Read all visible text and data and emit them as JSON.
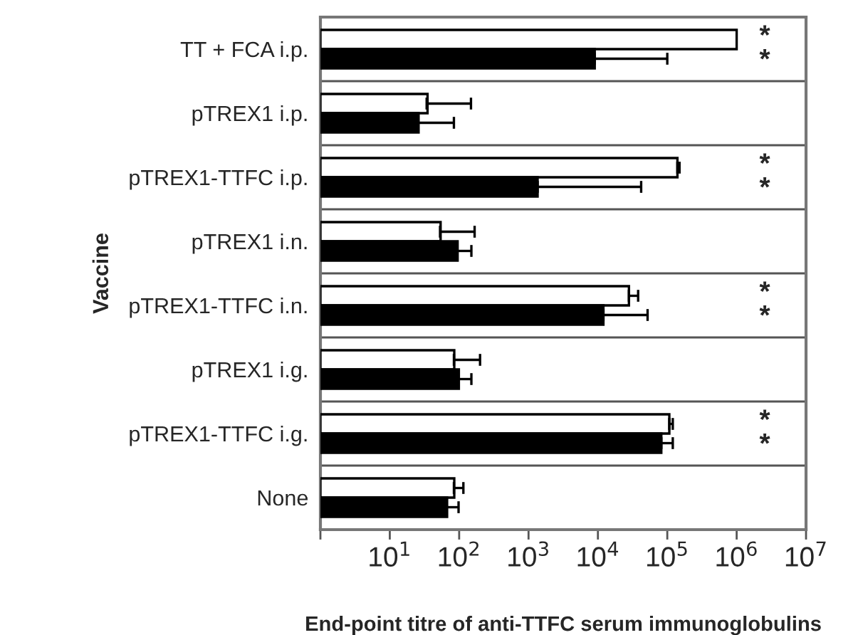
{
  "chart_data": {
    "type": "bar",
    "orientation": "horizontal",
    "log": "x",
    "xlabel": "End-point titre of anti-TTFC serum immunoglobulins",
    "ylabel": "Vaccine",
    "categories": [
      "TT + FCA i.p.",
      "pTREX1 i.p.",
      "pTREX1-TTFC i.p.",
      "pTREX1 i.n.",
      "pTREX1-TTFC i.n.",
      "pTREX1 i.g.",
      "pTREX1-TTFC i.g.",
      "None"
    ],
    "series": [
      {
        "color": "#ffffff",
        "values": [
          1000000,
          34,
          140000,
          53,
          28000,
          84,
          107000,
          84
        ],
        "errors": [
          null,
          [
            34,
            148
          ],
          [
            140000,
            150000
          ],
          [
            53,
            167
          ],
          [
            28000,
            38000
          ],
          [
            84,
            200
          ],
          [
            107000,
            120000
          ],
          [
            84,
            115
          ]
        ]
      },
      {
        "color": "#000000",
        "values": [
          9000,
          25,
          1350,
          94,
          12000,
          98,
          82000,
          66
        ],
        "errors": [
          [
            9000,
            100000
          ],
          [
            25,
            84
          ],
          [
            1350,
            42000
          ],
          [
            94,
            150
          ],
          [
            12000,
            52000
          ],
          [
            98,
            150
          ],
          [
            82000,
            120000
          ],
          [
            66,
            98
          ]
        ]
      }
    ],
    "xlim": [
      1,
      10000000
    ],
    "xticks": [
      {
        "value": 1,
        "label": null
      },
      {
        "value": 10,
        "label": "10$^{1}$"
      },
      {
        "value": 100,
        "label": "10$^{2}$"
      },
      {
        "value": 1000,
        "label": "10$^{3}$"
      },
      {
        "value": 10000,
        "label": "10$^{4}$"
      },
      {
        "value": 100000,
        "label": "10$^{5}$"
      },
      {
        "value": 1000000,
        "label": "10$^{6}$"
      },
      {
        "value": 10000000,
        "label": "10$^{7}$"
      }
    ],
    "grid": "y",
    "annotations": [
      "*\n*",
      "*\n*",
      "*\n*",
      "*\n*"
    ]
  }
}
